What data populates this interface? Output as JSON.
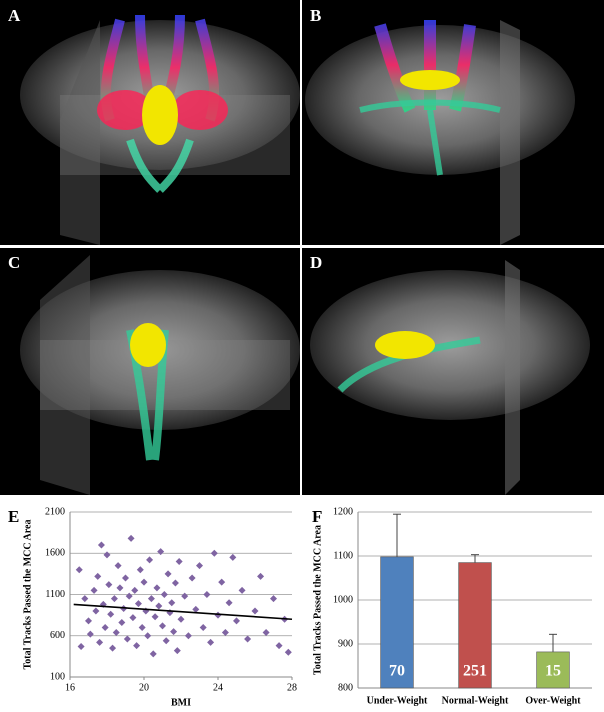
{
  "panel_labels": [
    "A",
    "B",
    "C",
    "D"
  ],
  "chart_data": [
    {
      "type": "scatter",
      "panel_label": "E",
      "x_label": "BMI",
      "y_label": "Total Tracks Passed the MCC Area",
      "color": "#7f64a2",
      "xlim": [
        16,
        28
      ],
      "xticks": [
        16,
        20,
        24,
        28
      ],
      "ylim": [
        100,
        2100
      ],
      "yticks": [
        100,
        600,
        1100,
        1600,
        2100
      ],
      "grid": true,
      "x": [
        16.5,
        16.6,
        16.8,
        17.0,
        17.1,
        17.3,
        17.4,
        17.5,
        17.6,
        17.7,
        17.8,
        17.9,
        18.0,
        18.1,
        18.2,
        18.3,
        18.4,
        18.5,
        18.6,
        18.7,
        18.8,
        18.9,
        19.0,
        19.1,
        19.2,
        19.3,
        19.4,
        19.5,
        19.6,
        19.7,
        19.8,
        19.9,
        20.0,
        20.1,
        20.2,
        20.3,
        20.4,
        20.5,
        20.6,
        20.7,
        20.8,
        20.9,
        21.0,
        21.1,
        21.2,
        21.3,
        21.4,
        21.5,
        21.6,
        21.7,
        21.8,
        21.9,
        22.0,
        22.2,
        22.4,
        22.6,
        22.8,
        23.0,
        23.2,
        23.4,
        23.6,
        23.8,
        24.0,
        24.2,
        24.4,
        24.6,
        24.8,
        25.0,
        25.3,
        25.6,
        26.0,
        26.3,
        26.6,
        27.0,
        27.3,
        27.6,
        27.8
      ],
      "y": [
        1400,
        470,
        1050,
        780,
        620,
        1150,
        900,
        1320,
        520,
        1700,
        980,
        700,
        1580,
        1220,
        860,
        450,
        1050,
        640,
        1450,
        1180,
        760,
        930,
        1300,
        560,
        1080,
        1780,
        820,
        1150,
        480,
        990,
        1400,
        700,
        1250,
        900,
        600,
        1520,
        1050,
        380,
        830,
        1180,
        960,
        1620,
        720,
        1100,
        540,
        1350,
        880,
        1000,
        650,
        1240,
        420,
        1500,
        800,
        1080,
        600,
        1300,
        920,
        1450,
        700,
        1100,
        520,
        1600,
        850,
        1250,
        640,
        1000,
        1550,
        780,
        1150,
        560,
        900,
        1320,
        640,
        1050,
        480,
        800,
        400
      ],
      "trend_line": {
        "x": [
          16.2,
          28
        ],
        "y": [
          980,
          800
        ]
      },
      "trend_color": "#000000"
    },
    {
      "type": "bar",
      "panel_label": "F",
      "y_label": "Total Tracks Passed the MCC Area",
      "categories": [
        "Under-Weight",
        "Normal-Weight",
        "Over-Weight"
      ],
      "values": [
        1098,
        1085,
        882
      ],
      "errors": [
        97,
        18,
        40
      ],
      "counts": [
        70,
        251,
        15
      ],
      "colors": [
        "#4f81bd",
        "#c0504d",
        "#9bbb59"
      ],
      "ylim": [
        800,
        1200
      ],
      "yticks": [
        800,
        900,
        1000,
        1100,
        1200
      ],
      "grid": true
    }
  ]
}
